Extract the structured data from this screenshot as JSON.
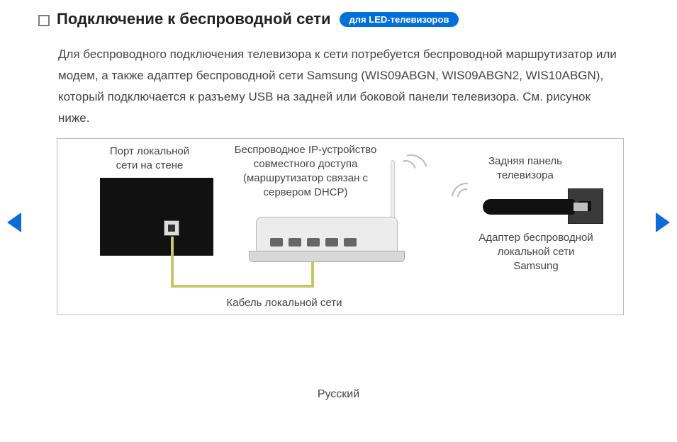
{
  "header": {
    "title": "Подключение к беспроводной сети",
    "badge": "для LED-телевизоров"
  },
  "body_paragraph": "Для беспроводного подключения телевизора к сети потребуется беспроводной маршрутизатор или модем, а также адаптер беспроводной сети Samsung (WIS09ABGN, WIS09ABGN2, WIS10ABGN), который подключается к разъему USB на задней или боковой панели телевизора. См. рисунок ниже.",
  "diagram": {
    "wall_port_label": "Порт локальной\nсети на стене",
    "router_label": "Беспроводное IP-устройство\nсовместного доступа\n(маршрутизатор связан с\nсервером DHCP)",
    "tv_back_label": "Задняя панель\nтелевизора",
    "adapter_label": "Адаптер беспроводной\nлокальной сети\nSamsung",
    "cable_label": "Кабель локальной сети",
    "colors": {
      "box_border": "#bbbbbb",
      "wall_port_bg": "#111111",
      "router_bg": "#ececec",
      "cable_color": "#c9c66a",
      "adapter_bg": "#111111",
      "tv_back_bg": "#3a3a3a"
    }
  },
  "nav": {
    "arrow_color": "#0d6bd6"
  },
  "footer": {
    "language": "Русский"
  }
}
